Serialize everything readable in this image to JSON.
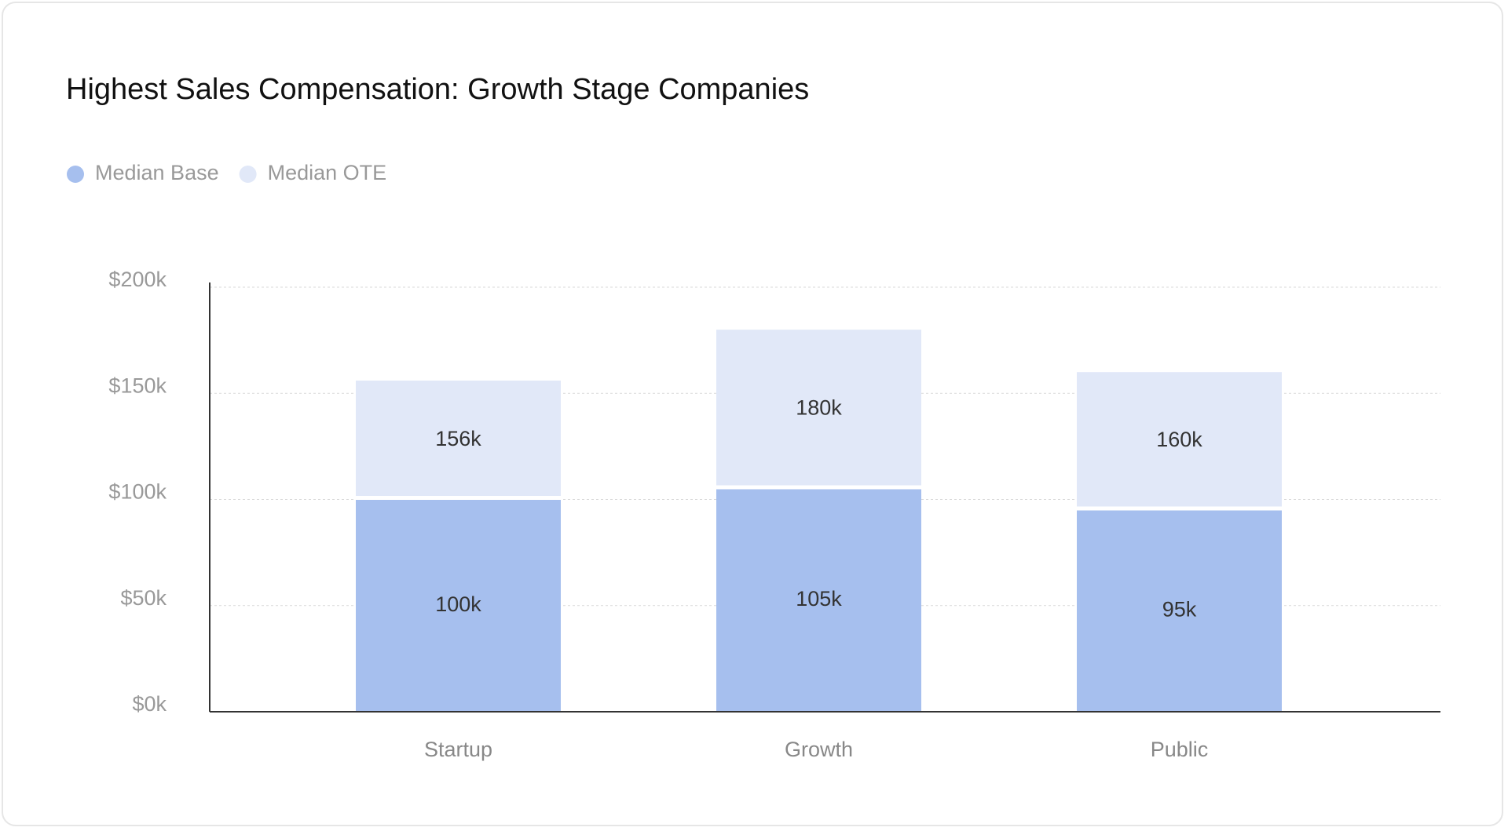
{
  "chart_data": {
    "type": "overlap_bar",
    "title": "Highest Sales Compensation: Growth Stage Companies",
    "categories": [
      "Startup",
      "Growth",
      "Public"
    ],
    "series": [
      {
        "name": "Median Base",
        "color": "#a6bfee",
        "values": [
          100,
          105,
          95
        ],
        "value_labels": [
          "100k",
          "105k",
          "95k"
        ]
      },
      {
        "name": "Median OTE",
        "color": "#e1e8f8",
        "values": [
          156,
          180,
          160
        ],
        "value_labels": [
          "156k",
          "180k",
          "160k"
        ]
      }
    ],
    "ylim": [
      0,
      200
    ],
    "yticks": [
      {
        "value": 0,
        "label": "$0k"
      },
      {
        "value": 50,
        "label": "$50k"
      },
      {
        "value": 100,
        "label": "$100k"
      },
      {
        "value": 150,
        "label": "$150k"
      },
      {
        "value": 200,
        "label": "$200k"
      }
    ],
    "grid": true
  }
}
